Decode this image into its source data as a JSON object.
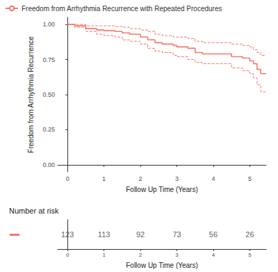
{
  "chart_data": {
    "type": "step",
    "x_label": "Follow Up Time (Years)",
    "y_label": "Freedom from Arrhythmia Recurrence",
    "grid": false,
    "legend": "top-left",
    "xlim": [
      -0.27,
      5.45
    ],
    "xticks": [
      0,
      1,
      2,
      3,
      4,
      5
    ],
    "ylim": [
      -0.05,
      1.05
    ],
    "yticks": [
      {
        "value": 0,
        "label": "0.00"
      },
      {
        "value": 0.25,
        "label": "0.25"
      },
      {
        "value": 0.5,
        "label": "0.50"
      },
      {
        "value": 0.75,
        "label": "0.75"
      },
      {
        "value": 1,
        "label": "1.00"
      }
    ],
    "x": [
      0,
      0.2,
      0.5,
      0.8,
      1.0,
      1.3,
      1.5,
      1.7,
      2.0,
      2.2,
      2.4,
      2.6,
      2.9,
      3.0,
      3.3,
      3.5,
      3.7,
      4.5,
      4.8,
      5.0,
      5.1,
      5.2,
      5.3,
      5.45
    ],
    "series": [
      {
        "name": "Freedom from Arrhythmia Recurrence with Repeated Procedures",
        "color": "#F8766D",
        "values": [
          1,
          0.99,
          0.97,
          0.96,
          0.955,
          0.95,
          0.94,
          0.93,
          0.91,
          0.89,
          0.87,
          0.86,
          0.85,
          0.84,
          0.83,
          0.8,
          0.79,
          0.77,
          0.76,
          0.74,
          0.72,
          0.68,
          0.65,
          0.65
        ],
        "ci_lower": [
          1,
          0.98,
          0.95,
          0.93,
          0.92,
          0.91,
          0.89,
          0.88,
          0.86,
          0.83,
          0.81,
          0.8,
          0.78,
          0.77,
          0.75,
          0.73,
          0.72,
          0.69,
          0.67,
          0.65,
          0.62,
          0.57,
          0.52,
          0.52
        ],
        "ci_upper": [
          1,
          1,
          0.99,
          0.99,
          0.99,
          0.985,
          0.98,
          0.97,
          0.96,
          0.95,
          0.93,
          0.92,
          0.91,
          0.91,
          0.9,
          0.88,
          0.87,
          0.86,
          0.85,
          0.84,
          0.82,
          0.8,
          0.78,
          0.78
        ]
      }
    ],
    "risk_table": {
      "title": "Number at risk",
      "times": [
        0,
        1,
        2,
        3,
        4,
        5
      ],
      "counts": [
        123,
        113,
        92,
        73,
        56,
        26
      ]
    }
  }
}
